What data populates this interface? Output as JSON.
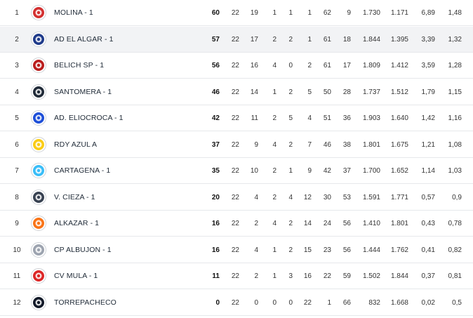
{
  "colors": {
    "row_highlight": "#f2f3f5",
    "divider": "#e6e8eb"
  },
  "rows": [
    {
      "pos": "1",
      "team": "MOLINA - 1",
      "logo": "molina-crest-icon",
      "logo_color": "#d32f2f",
      "pts": "60",
      "pj": "22",
      "w": "19",
      "d": "1",
      "l": "1",
      "x": "1",
      "gf": "62",
      "ga": "9",
      "ratio1": "1.730",
      "ratio2": "1.171",
      "ratio3": "6,89",
      "ratio4": "1,48"
    },
    {
      "pos": "2",
      "team": "AD EL ALGAR - 1",
      "logo": "el-algar-crest-icon",
      "logo_color": "#1e3a8a",
      "pts": "57",
      "pj": "22",
      "w": "17",
      "d": "2",
      "l": "2",
      "x": "1",
      "gf": "61",
      "ga": "18",
      "ratio1": "1.844",
      "ratio2": "1.395",
      "ratio3": "3,39",
      "ratio4": "1,32"
    },
    {
      "pos": "3",
      "team": "BELICH SP - 1",
      "logo": "belich-crest-icon",
      "logo_color": "#b91c1c",
      "pts": "56",
      "pj": "22",
      "w": "16",
      "d": "4",
      "l": "0",
      "x": "2",
      "gf": "61",
      "ga": "17",
      "ratio1": "1.809",
      "ratio2": "1.412",
      "ratio3": "3,59",
      "ratio4": "1,28"
    },
    {
      "pos": "4",
      "team": "SANTOMERA - 1",
      "logo": "santomera-crest-icon",
      "logo_color": "#1f2937",
      "pts": "46",
      "pj": "22",
      "w": "14",
      "d": "1",
      "l": "2",
      "x": "5",
      "gf": "50",
      "ga": "28",
      "ratio1": "1.737",
      "ratio2": "1.512",
      "ratio3": "1,79",
      "ratio4": "1,15"
    },
    {
      "pos": "5",
      "team": "AD. ELIOCROCA - 1",
      "logo": "eliocroca-crest-icon",
      "logo_color": "#1d4ed8",
      "pts": "42",
      "pj": "22",
      "w": "11",
      "d": "2",
      "l": "5",
      "x": "4",
      "gf": "51",
      "ga": "36",
      "ratio1": "1.903",
      "ratio2": "1.640",
      "ratio3": "1,42",
      "ratio4": "1,16"
    },
    {
      "pos": "6",
      "team": "RDY AZUL A",
      "logo": "rdy-crest-icon",
      "logo_color": "#facc15",
      "pts": "37",
      "pj": "22",
      "w": "9",
      "d": "4",
      "l": "2",
      "x": "7",
      "gf": "46",
      "ga": "38",
      "ratio1": "1.801",
      "ratio2": "1.675",
      "ratio3": "1,21",
      "ratio4": "1,08"
    },
    {
      "pos": "7",
      "team": "CARTAGENA - 1",
      "logo": "cartagena-crest-icon",
      "logo_color": "#38bdf8",
      "pts": "35",
      "pj": "22",
      "w": "10",
      "d": "2",
      "l": "1",
      "x": "9",
      "gf": "42",
      "ga": "37",
      "ratio1": "1.700",
      "ratio2": "1.652",
      "ratio3": "1,14",
      "ratio4": "1,03"
    },
    {
      "pos": "8",
      "team": "V. CIEZA - 1",
      "logo": "cieza-crest-icon",
      "logo_color": "#374151",
      "pts": "20",
      "pj": "22",
      "w": "4",
      "d": "2",
      "l": "4",
      "x": "12",
      "gf": "30",
      "ga": "53",
      "ratio1": "1.591",
      "ratio2": "1.771",
      "ratio3": "0,57",
      "ratio4": "0,9"
    },
    {
      "pos": "9",
      "team": "ALKAZAR - 1",
      "logo": "alkazar-crest-icon",
      "logo_color": "#f97316",
      "pts": "16",
      "pj": "22",
      "w": "2",
      "d": "4",
      "l": "2",
      "x": "14",
      "gf": "24",
      "ga": "56",
      "ratio1": "1.410",
      "ratio2": "1.801",
      "ratio3": "0,43",
      "ratio4": "0,78"
    },
    {
      "pos": "10",
      "team": "CP ALBUJON - 1",
      "logo": "albujon-crest-icon",
      "logo_color": "#9ca3af",
      "pts": "16",
      "pj": "22",
      "w": "4",
      "d": "1",
      "l": "2",
      "x": "15",
      "gf": "23",
      "ga": "56",
      "ratio1": "1.444",
      "ratio2": "1.762",
      "ratio3": "0,41",
      "ratio4": "0,82"
    },
    {
      "pos": "11",
      "team": "CV MULA - 1",
      "logo": "mula-crest-icon",
      "logo_color": "#dc2626",
      "pts": "11",
      "pj": "22",
      "w": "2",
      "d": "1",
      "l": "3",
      "x": "16",
      "gf": "22",
      "ga": "59",
      "ratio1": "1.502",
      "ratio2": "1.844",
      "ratio3": "0,37",
      "ratio4": "0,81"
    },
    {
      "pos": "12",
      "team": "TORREPACHECO",
      "logo": "torrepacheco-crest-icon",
      "logo_color": "#111827",
      "pts": "0",
      "pj": "22",
      "w": "0",
      "d": "0",
      "l": "0",
      "x": "22",
      "gf": "1",
      "ga": "66",
      "ratio1": "832",
      "ratio2": "1.668",
      "ratio3": "0,02",
      "ratio4": "0,5"
    }
  ]
}
